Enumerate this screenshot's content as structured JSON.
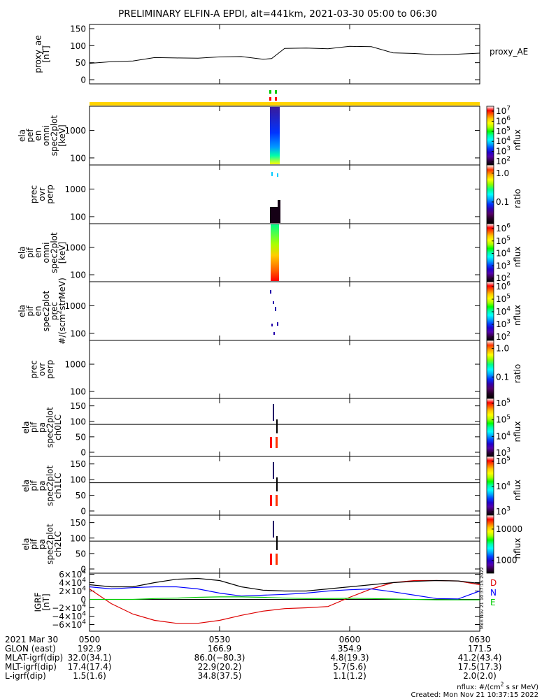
{
  "title": "PRELIMINARY ELFIN-A EPDI, alt=441km, 2021-03-30 05:00 to 06:30",
  "panels": [
    {
      "ylabel": [
        "proxy_ae",
        "[nT]"
      ],
      "yticks": [
        "150",
        "100",
        "50",
        "0"
      ],
      "right_label": "proxy_AE"
    },
    {
      "ylabel": [
        "ela",
        "pef",
        "en",
        "omni",
        "spec2plot",
        "[keV]"
      ],
      "yticks": [
        "1000",
        "100"
      ],
      "cbar_ticks": [
        "10^7",
        "10^6",
        "10^5",
        "10^4",
        "10^3",
        "10^2"
      ],
      "cbar_label": "nflux"
    },
    {
      "ylabel": [
        "prec",
        "ovr",
        "perp"
      ],
      "yticks": [
        "1000",
        "100"
      ],
      "cbar_ticks": [
        "1.0",
        "0.1"
      ],
      "cbar_label": "ratio"
    },
    {
      "ylabel": [
        "ela",
        "pif",
        "en",
        "omni",
        "spec2plot",
        "[keV]"
      ],
      "yticks": [
        "1000",
        "100"
      ],
      "cbar_ticks": [
        "10^6",
        "10^5",
        "10^4",
        "10^3",
        "10^2"
      ],
      "cbar_label": "nflux"
    },
    {
      "ylabel": [
        "ela",
        "pif",
        "en",
        "spec2plot",
        "prec",
        "#/(scm^2strMeV)"
      ],
      "yticks": [
        "1000",
        "100"
      ],
      "cbar_ticks": [
        "10^6",
        "10^5",
        "10^4",
        "10^3",
        "10^2"
      ],
      "cbar_label": "nflux"
    },
    {
      "ylabel": [
        "prec",
        "ovr",
        "perp"
      ],
      "yticks": [
        "1000",
        "100"
      ],
      "cbar_ticks": [
        "1.0",
        "0.1"
      ],
      "cbar_label": "ratio"
    },
    {
      "ylabel": [
        "ela",
        "pif",
        "pa",
        "spec2plot",
        "ch0LC"
      ],
      "yticks": [
        "150",
        "100",
        "50",
        "0"
      ],
      "cbar_ticks": [
        "10^5",
        "10^5",
        "10^4",
        "10^3"
      ],
      "cbar_label": "nflux"
    },
    {
      "ylabel": [
        "ela",
        "pif",
        "pa",
        "spec2plot",
        "ch1LC"
      ],
      "yticks": [
        "150",
        "100",
        "50",
        "0"
      ],
      "cbar_ticks": [
        "10^5",
        "10^4",
        "10^3"
      ],
      "cbar_label": "nflux"
    },
    {
      "ylabel": [
        "ela",
        "pif",
        "pa",
        "spec2plot",
        "ch2LC"
      ],
      "yticks": [
        "150",
        "100",
        "50",
        "0"
      ],
      "cbar_ticks": [
        "10000",
        "1000"
      ],
      "cbar_label": "nflux"
    },
    {
      "ylabel": [
        "IGRF",
        "[nT]"
      ],
      "yticks": [
        "6×10^4",
        "4×10^4",
        "2×10^4",
        "0",
        "−2×10^4",
        "−4×10^4",
        "−6×10^4"
      ],
      "legend": [
        "D",
        "N",
        "E"
      ]
    }
  ],
  "chart_data": {
    "type": "line",
    "x_range": [
      "05:00",
      "06:30"
    ],
    "proxy_ae": {
      "ylim": [
        0,
        150
      ],
      "x": [
        "05:00",
        "05:05",
        "05:10",
        "05:15",
        "05:20",
        "05:25",
        "05:30",
        "05:35",
        "05:40",
        "05:42",
        "05:45",
        "05:50",
        "05:55",
        "06:00",
        "06:05",
        "06:10",
        "06:15",
        "06:20",
        "06:25",
        "06:30"
      ],
      "values": [
        48,
        53,
        55,
        65,
        64,
        63,
        67,
        68,
        60,
        62,
        92,
        93,
        91,
        98,
        97,
        79,
        77,
        73,
        75,
        78
      ]
    },
    "igrf": {
      "ylim": [
        -60000,
        60000
      ],
      "x": [
        "05:00",
        "05:05",
        "05:10",
        "05:15",
        "05:20",
        "05:25",
        "05:30",
        "05:35",
        "05:40",
        "05:45",
        "05:50",
        "05:55",
        "06:00",
        "06:05",
        "06:10",
        "06:15",
        "06:20",
        "06:25",
        "06:30"
      ],
      "series": [
        {
          "name": "D",
          "color": "#dd0000",
          "values": [
            25000,
            -10000,
            -35000,
            -50000,
            -57000,
            -57000,
            -50000,
            -38000,
            -28000,
            -22000,
            -20000,
            -17000,
            5000,
            25000,
            40000,
            45000,
            45000,
            44000,
            35000
          ]
        },
        {
          "name": "N",
          "color": "#0000ff",
          "values": [
            30000,
            25000,
            28000,
            30000,
            30000,
            25000,
            15000,
            8000,
            10000,
            12000,
            15000,
            20000,
            23000,
            25000,
            18000,
            10000,
            2000,
            1000,
            20000
          ]
        },
        {
          "name": "E",
          "color": "#00cc00",
          "values": [
            0,
            0,
            0,
            2000,
            3000,
            5000,
            6000,
            6000,
            5000,
            3000,
            2000,
            2000,
            2500,
            2000,
            1000,
            0,
            -1000,
            -1000,
            -1000
          ]
        },
        {
          "name": "",
          "color": "#000000",
          "values": [
            35000,
            30000,
            30000,
            40000,
            48000,
            50000,
            45000,
            30000,
            22000,
            20000,
            20000,
            25000,
            30000,
            35000,
            40000,
            43000,
            45000,
            44000,
            38000
          ]
        }
      ]
    }
  },
  "xaxis": {
    "row_labels": [
      "2021 Mar 30",
      "GLON (east)",
      "MLAT-igrf(dip)",
      "MLT-igrf(dip)",
      "L-igrf(dip)"
    ],
    "ticks": [
      "0500",
      "0530",
      "0600",
      "0630"
    ],
    "values": [
      [
        "192.9",
        "166.9",
        "354.9",
        "171.5"
      ],
      [
        "32.0(34.1)",
        "86.0(−80.3)",
        "4.8(19.3)",
        "41.2(43.4)"
      ],
      [
        "17.4(17.4)",
        "22.9(20.2)",
        "5.7(5.6)",
        "17.5(17.3)"
      ],
      [
        "1.5(1.6)",
        "34.8(37.5)",
        "1.1(1.2)",
        "2.0(2.0)"
      ]
    ]
  },
  "footer": {
    "units": "nflux: #/(cm^2 s sr MeV)",
    "created": "Created: Mon Nov 21 10:37:15 2022",
    "vertical_stamp": "Mon Nov 21 10:37:15 2022"
  }
}
